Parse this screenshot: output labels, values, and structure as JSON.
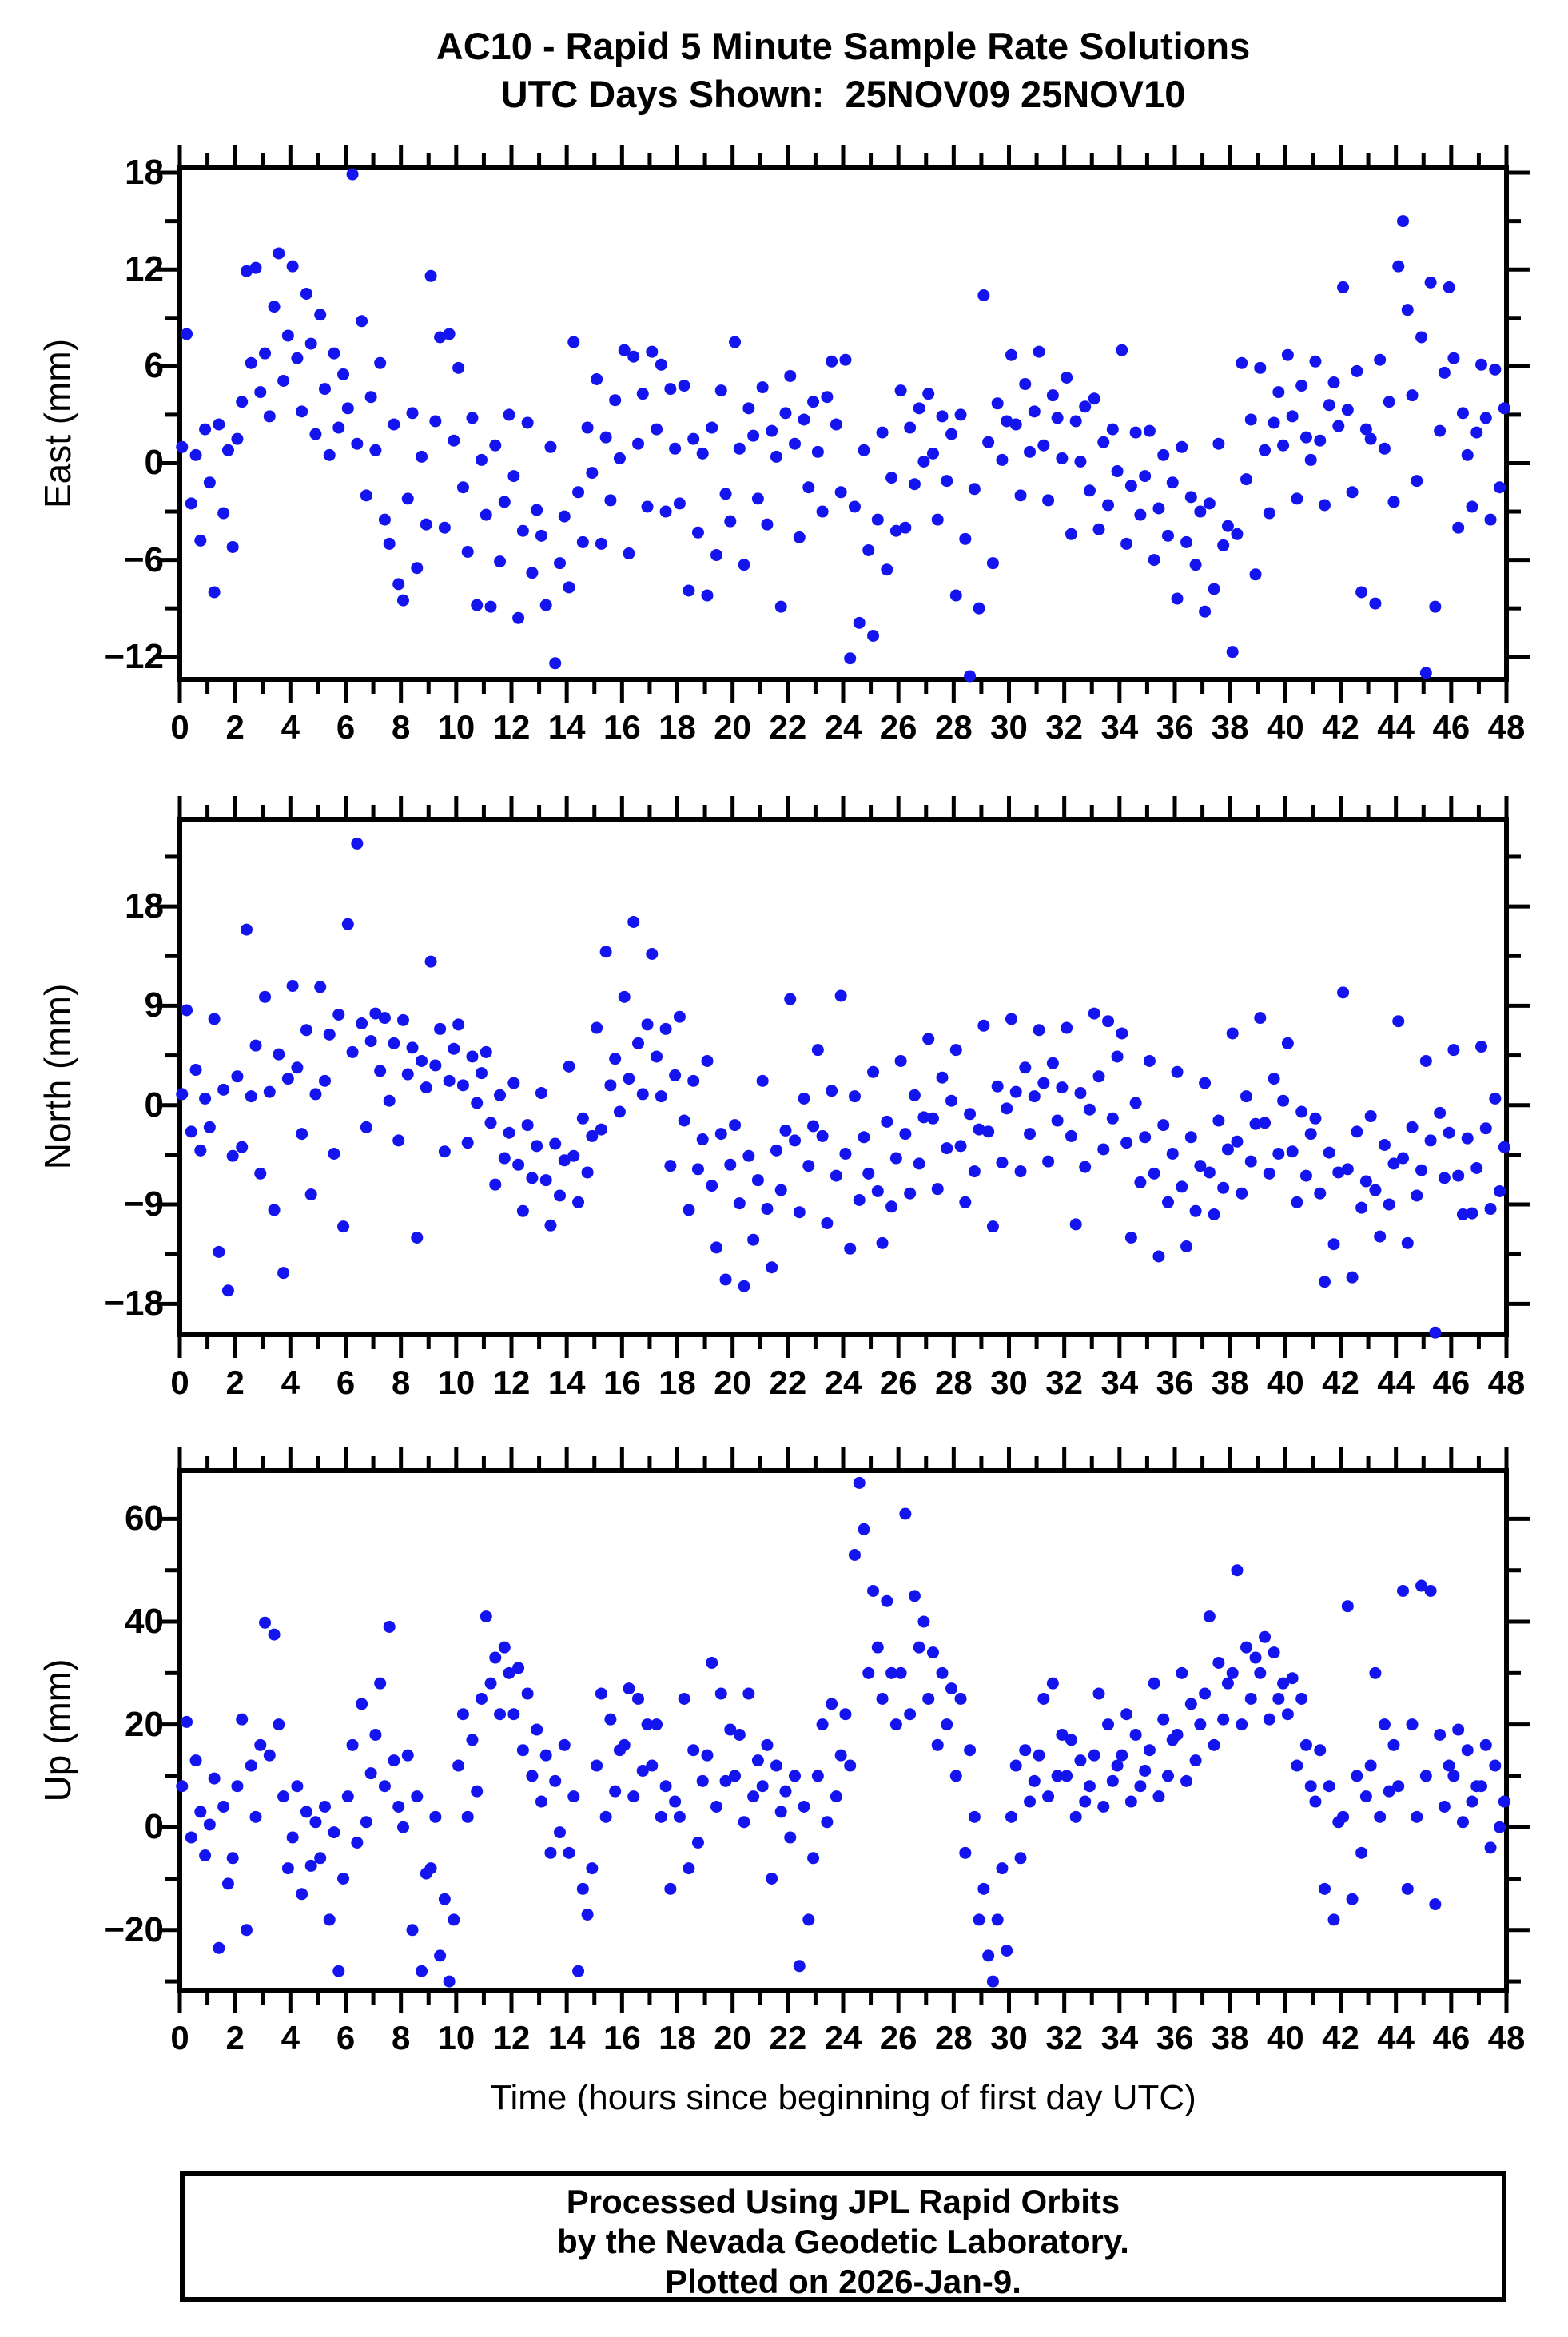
{
  "title": {
    "line1": "AC10 - Rapid 5 Minute Sample Rate Solutions",
    "line2": "UTC Days Shown:  25NOV09 25NOV10"
  },
  "x_axis": {
    "label": "Time (hours since beginning of first day UTC)",
    "lim": [
      0,
      48
    ],
    "major_step": 2,
    "minor_step": 1
  },
  "footer": {
    "line1": "Processed Using JPL Rapid Orbits",
    "line2": "by the Nevada Geodetic Laboratory.",
    "line3": "Plotted on 2026-Jan-9."
  },
  "point_color": "#1414ee",
  "frame_color": "#000000",
  "chart_data": [
    {
      "type": "scatter",
      "name": "east",
      "ylabel": "East (mm)",
      "xlabel": "",
      "ylim": [
        -13.4,
        18.3
      ],
      "yticks": [
        18,
        12,
        6,
        0,
        -6,
        -12
      ],
      "yminor": [
        15,
        9,
        3,
        -3,
        -9
      ],
      "x_start": 0.08,
      "x_step": 0.1667,
      "y": [
        1.0,
        8.0,
        -2.5,
        0.5,
        -4.8,
        2.1,
        -1.2,
        -8.0,
        2.4,
        -3.1,
        0.8,
        -5.2,
        1.5,
        3.8,
        11.9,
        6.2,
        12.1,
        4.4,
        6.8,
        2.9,
        9.7,
        13.0,
        5.1,
        7.9,
        12.2,
        6.5,
        3.2,
        10.5,
        7.4,
        1.8,
        9.2,
        4.6,
        0.5,
        6.8,
        2.2,
        5.5,
        3.4,
        17.9,
        1.2,
        8.8,
        -2.0,
        4.1,
        0.8,
        6.2,
        -3.5,
        -5.0,
        2.4,
        -7.5,
        -8.5,
        -2.2,
        3.1,
        -6.5,
        0.4,
        -3.8,
        11.6,
        2.6,
        7.8,
        -4.0,
        8.0,
        1.4,
        5.9,
        -1.5,
        -5.5,
        2.8,
        -8.8,
        0.2,
        -3.2,
        -8.9,
        1.1,
        -6.1,
        -2.4,
        3.0,
        -0.8,
        -9.6,
        -4.2,
        2.5,
        -6.8,
        -2.9,
        -4.5,
        -8.8,
        1.0,
        -12.4,
        -6.2,
        -3.3,
        -7.7,
        7.5,
        -1.8,
        -4.9,
        2.2,
        -0.6,
        5.2,
        -5.0,
        1.6,
        -2.3,
        3.9,
        0.3,
        7.0,
        -5.6,
        6.6,
        1.2,
        4.3,
        -2.7,
        6.9,
        2.1,
        6.1,
        -3.0,
        4.6,
        0.9,
        -2.5,
        4.8,
        -7.9,
        1.5,
        -4.3,
        0.6,
        -8.2,
        2.2,
        -5.7,
        4.5,
        -1.9,
        -3.6,
        7.5,
        0.9,
        -6.3,
        3.4,
        1.7,
        -2.2,
        4.7,
        -3.8,
        2.0,
        0.4,
        -8.9,
        3.1,
        5.4,
        1.2,
        -4.6,
        2.7,
        -1.5,
        3.8,
        0.7,
        -3.0,
        4.1,
        6.3,
        2.4,
        -1.8,
        6.4,
        -12.1,
        -2.7,
        -9.9,
        0.8,
        -5.4,
        -10.7,
        -3.5,
        1.9,
        -6.6,
        -0.9,
        -4.2,
        4.5,
        -4.0,
        2.2,
        -1.3,
        3.4,
        0.1,
        4.3,
        0.6,
        -3.5,
        2.9,
        -1.1,
        1.8,
        -8.2,
        3.0,
        -4.7,
        -13.2,
        -1.6,
        -9.0,
        10.4,
        1.3,
        -6.2,
        3.7,
        0.2,
        2.6,
        6.7,
        2.4,
        -2.0,
        4.9,
        0.7,
        3.2,
        6.9,
        1.1,
        -2.3,
        4.2,
        2.8,
        0.3,
        5.3,
        -4.4,
        2.6,
        0.1,
        3.5,
        -1.7,
        4.0,
        -4.1,
        1.3,
        -2.6,
        2.1,
        -0.5,
        7.0,
        -5.0,
        -1.4,
        1.9,
        -3.2,
        -0.8,
        2.0,
        -6.0,
        -2.8,
        0.5,
        -4.5,
        -1.2,
        -8.4,
        1.0,
        -4.9,
        -2.1,
        -6.3,
        -3.0,
        -9.2,
        -2.5,
        -7.8,
        1.2,
        -5.1,
        -3.9,
        -11.7,
        -4.4,
        6.2,
        -1.0,
        2.7,
        -6.9,
        5.9,
        0.8,
        -3.1,
        2.5,
        4.4,
        1.1,
        6.7,
        2.9,
        -2.2,
        4.8,
        1.6,
        0.2,
        6.3,
        1.4,
        -2.6,
        3.6,
        5.0,
        2.3,
        10.9,
        3.3,
        -1.8,
        5.7,
        -8.0,
        2.1,
        1.5,
        -8.7,
        6.4,
        0.9,
        3.8,
        -2.4,
        12.2,
        15.0,
        9.5,
        4.2,
        -1.1,
        7.8,
        -13.0,
        11.2,
        -8.9,
        2.0,
        5.6,
        10.9,
        6.5,
        -4.0,
        3.1,
        0.5,
        -2.7,
        1.9,
        6.1,
        2.8,
        -3.5,
        5.8,
        -1.5,
        3.4
      ]
    },
    {
      "type": "scatter",
      "name": "north",
      "ylabel": "North (mm)",
      "xlabel": "",
      "ylim": [
        -20.8,
        25.9
      ],
      "yticks": [
        18,
        9,
        0,
        -9,
        -18
      ],
      "yminor": [
        22.5,
        13.5,
        4.5,
        -4.5,
        -13.5
      ],
      "x_start": 0.08,
      "x_step": 0.1667,
      "y": [
        1.0,
        8.6,
        -2.4,
        3.2,
        -4.1,
        0.6,
        -2.0,
        7.8,
        -13.3,
        1.4,
        -16.8,
        -4.6,
        2.6,
        -3.8,
        15.9,
        0.8,
        5.4,
        -6.2,
        9.8,
        1.2,
        -9.5,
        4.6,
        -15.2,
        2.4,
        10.8,
        3.4,
        -2.6,
        6.8,
        -8.1,
        1.0,
        10.7,
        2.2,
        6.4,
        -4.4,
        8.2,
        -11.0,
        16.4,
        4.8,
        23.7,
        7.4,
        -2.0,
        5.8,
        8.3,
        3.1,
        7.9,
        0.4,
        5.6,
        -3.2,
        7.7,
        2.8,
        5.2,
        -12.0,
        4.0,
        1.6,
        13.0,
        3.6,
        6.9,
        -4.2,
        2.2,
        5.1,
        7.3,
        1.8,
        -3.4,
        4.4,
        0.2,
        2.9,
        4.8,
        -1.6,
        -7.2,
        0.9,
        -4.8,
        -2.5,
        2.0,
        -5.4,
        -9.6,
        -1.8,
        -6.6,
        -3.7,
        1.1,
        -6.8,
        -10.9,
        -3.5,
        -8.2,
        -5.0,
        3.5,
        -4.6,
        -8.8,
        -1.2,
        -6.1,
        -2.8,
        7.0,
        -2.2,
        13.9,
        1.8,
        4.2,
        -0.6,
        9.8,
        2.4,
        16.6,
        5.6,
        1.0,
        7.3,
        13.7,
        4.4,
        0.8,
        6.9,
        -5.5,
        2.7,
        8.0,
        -1.4,
        -9.5,
        2.2,
        -5.8,
        -3.1,
        4.0,
        -7.3,
        -12.9,
        -2.6,
        -15.8,
        -5.4,
        -1.8,
        -8.9,
        -16.4,
        -4.6,
        -12.2,
        -6.8,
        2.2,
        -9.4,
        -14.7,
        -4.1,
        -7.7,
        -2.3,
        9.6,
        -3.2,
        -9.7,
        0.6,
        -5.5,
        -1.9,
        5.0,
        -2.8,
        -10.7,
        1.3,
        -6.4,
        9.9,
        -4.4,
        -13.0,
        0.8,
        -8.6,
        -2.9,
        -6.2,
        3.0,
        -7.8,
        -12.5,
        -1.5,
        -9.2,
        -4.8,
        4.0,
        -2.6,
        -8.0,
        0.9,
        -5.3,
        -1.1,
        6.0,
        -1.2,
        -7.6,
        2.5,
        -3.9,
        0.4,
        5.0,
        -3.7,
        -8.8,
        -0.8,
        -6.0,
        -2.2,
        7.2,
        -2.4,
        -11.0,
        1.7,
        -5.2,
        -0.3,
        7.8,
        1.2,
        -6.0,
        3.4,
        -2.6,
        0.8,
        6.8,
        2.0,
        -5.1,
        3.8,
        -1.4,
        1.6,
        7.0,
        -2.8,
        -10.8,
        1.1,
        -5.6,
        -0.4,
        8.3,
        2.6,
        -4.0,
        7.6,
        -1.2,
        4.4,
        6.5,
        -3.4,
        -12.0,
        0.2,
        -7.0,
        -2.9,
        4.0,
        -6.2,
        -13.7,
        -1.8,
        -8.8,
        -4.4,
        3.0,
        -7.4,
        -12.8,
        -2.9,
        -9.6,
        -5.5,
        2.0,
        -6.1,
        -9.9,
        -1.4,
        -7.5,
        -4.0,
        6.5,
        -3.3,
        -8.0,
        0.8,
        -5.1,
        -1.7,
        7.9,
        -1.6,
        -6.2,
        2.4,
        -4.4,
        0.4,
        5.6,
        -4.2,
        -8.8,
        -0.6,
        -6.4,
        -2.6,
        -1.2,
        -8.0,
        -16.0,
        -4.3,
        -12.6,
        -6.1,
        10.2,
        -5.8,
        -15.6,
        -2.4,
        -9.3,
        -6.9,
        -1.0,
        -7.7,
        -11.9,
        -3.6,
        -9.0,
        -5.3,
        7.6,
        -4.8,
        -12.5,
        -2.0,
        -8.2,
        -5.9,
        4.0,
        -3.2,
        -20.6,
        -0.7,
        -6.6,
        -2.5,
        5.0,
        -6.4,
        -9.9,
        -3.0,
        -9.8,
        -5.7,
        5.3,
        -2.1,
        -9.4,
        0.6,
        -7.8,
        -3.8
      ]
    },
    {
      "type": "scatter",
      "name": "up",
      "ylabel": "Up (mm)",
      "xlabel": "Time (hours since beginning of first day UTC)",
      "ylim": [
        -31.7,
        69.4
      ],
      "yticks": [
        60,
        40,
        20,
        0,
        -20
      ],
      "yminor": [
        50,
        30,
        10,
        -10,
        -30
      ],
      "x_start": 0.08,
      "x_step": 0.1667,
      "y": [
        8,
        20.5,
        -2,
        13,
        3,
        -5.5,
        0.5,
        9.5,
        -23.5,
        4,
        -11,
        -6,
        8,
        21,
        -20,
        12,
        2,
        16,
        39.8,
        14,
        37.5,
        20,
        6,
        -8,
        -2,
        8,
        -13,
        3,
        -7.5,
        1,
        -6,
        4,
        -18,
        -1,
        -28,
        -10,
        6,
        16,
        -3,
        24,
        1,
        10.5,
        18,
        28,
        8,
        39,
        13,
        4,
        0,
        14,
        -20,
        6,
        -28,
        -9,
        -8,
        2,
        -25,
        -14,
        -30,
        -18,
        12,
        22,
        2,
        17,
        7,
        25,
        41,
        28,
        33,
        22,
        35,
        30,
        22,
        31,
        15,
        26,
        10,
        19,
        5,
        14,
        -5,
        9,
        -1,
        16,
        -5,
        6,
        -28,
        -12,
        -17,
        -8,
        12,
        26,
        2,
        21,
        7,
        15,
        16,
        27,
        6,
        25,
        11,
        20,
        12,
        20,
        2,
        8,
        -12,
        5,
        2,
        25,
        -8,
        15,
        -3,
        9,
        14,
        32,
        4,
        26,
        9,
        19,
        10,
        18,
        1,
        26,
        6,
        13,
        8,
        16,
        -10,
        12,
        3,
        7,
        -2,
        10,
        -27,
        4,
        -18,
        -6,
        10,
        20,
        1,
        24,
        6,
        14,
        22,
        12,
        53,
        67,
        58,
        30,
        46,
        35,
        25,
        44,
        30,
        20,
        30,
        61,
        22,
        45,
        35,
        40,
        25,
        34,
        16,
        30,
        20,
        27,
        10,
        25,
        -5,
        15,
        2,
        -18,
        -12,
        -25,
        -30,
        -18,
        -8,
        -24,
        2,
        12,
        -6,
        15,
        5,
        9,
        14,
        25,
        6,
        28,
        10,
        18,
        10,
        17,
        2,
        13,
        5,
        8,
        14,
        26,
        4,
        20,
        9,
        12,
        14,
        22,
        5,
        18,
        8,
        11,
        15,
        28,
        6,
        21,
        10,
        17,
        18,
        30,
        9,
        24,
        13,
        20,
        26,
        41,
        16,
        32,
        21,
        28,
        30,
        50,
        20,
        35,
        25,
        33,
        30,
        37,
        21,
        34,
        25,
        28,
        22,
        29,
        12,
        25,
        16,
        8,
        5,
        15,
        -12,
        8,
        -18,
        1,
        2,
        43,
        -14,
        10,
        -5,
        6,
        12,
        30,
        2,
        20,
        7,
        16,
        8,
        46,
        -12,
        20,
        2,
        47,
        10,
        46,
        -15,
        18,
        4,
        12,
        10,
        19,
        1,
        15,
        5,
        8,
        8,
        16,
        -4,
        12,
        0,
        5
      ]
    }
  ]
}
